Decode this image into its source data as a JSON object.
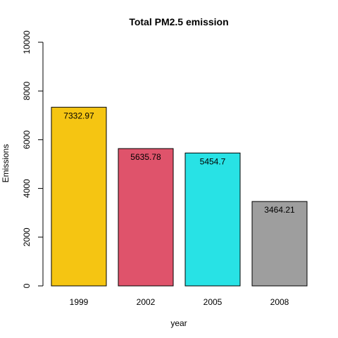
{
  "chart_data": {
    "type": "bar",
    "title": "Total PM2.5 emission",
    "xlabel": "year",
    "ylabel": "Emissions",
    "categories": [
      "1999",
      "2002",
      "2005",
      "2008"
    ],
    "values": [
      7332.97,
      5635.78,
      5454.7,
      3464.21
    ],
    "data_labels": [
      "7332.97",
      "5635.78",
      "5454.7",
      "3464.21"
    ],
    "colors": [
      "#f5c512",
      "#df536b",
      "#28e2e5",
      "#9e9e9e"
    ],
    "ylim": [
      0,
      10000
    ],
    "yticks": [
      0,
      2000,
      4000,
      6000,
      8000,
      10000
    ],
    "ytick_labels": [
      "0",
      "2000",
      "4000",
      "6000",
      "8000",
      "10000"
    ],
    "grid": false,
    "legend": "none"
  }
}
